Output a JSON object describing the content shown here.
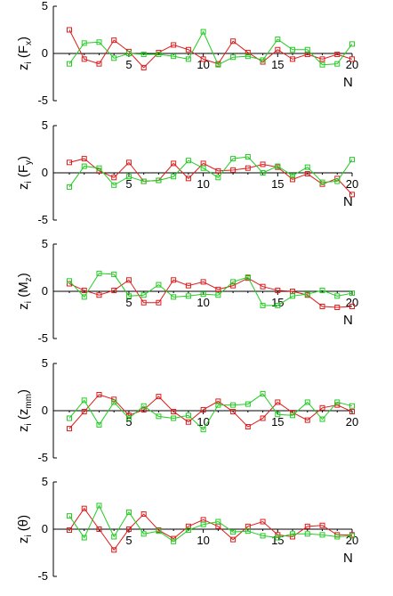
{
  "colors": {
    "series_red": "#dd1c1c",
    "series_green": "#22cc22",
    "axis": "#000000"
  },
  "chart_data": [
    {
      "type": "line",
      "ylabel_main": "z",
      "ylabel_sub1": "i",
      "ylabel_open": " (F",
      "ylabel_sub2": "x",
      "ylabel_close": ")",
      "xlabel": "N",
      "xlim": [
        1,
        20
      ],
      "ylim": [
        -5,
        5
      ],
      "yticks": [
        "5",
        "0",
        "-5"
      ],
      "xticks": [
        "5",
        "10",
        "15",
        "20"
      ],
      "x": [
        1,
        2,
        3,
        4,
        5,
        6,
        7,
        8,
        9,
        10,
        11,
        12,
        13,
        14,
        15,
        16,
        17,
        18,
        19,
        20
      ],
      "series": [
        {
          "color": "series_red",
          "values": [
            2.5,
            -0.6,
            -1.1,
            1.4,
            0.2,
            -1.5,
            0.1,
            0.9,
            0.4,
            -0.6,
            -1.1,
            1.3,
            0.1,
            -0.9,
            0.4,
            -0.6,
            -0.1,
            -0.6,
            -0.1,
            -0.6
          ]
        },
        {
          "color": "series_green",
          "values": [
            -1.1,
            1.1,
            1.2,
            -0.5,
            0.0,
            -0.1,
            -0.1,
            -0.3,
            -0.6,
            2.3,
            -1.2,
            -0.4,
            -0.3,
            -0.7,
            1.5,
            0.4,
            0.4,
            -1.2,
            -1.1,
            1.0
          ]
        }
      ]
    },
    {
      "type": "line",
      "ylabel_main": "z",
      "ylabel_sub1": "i",
      "ylabel_open": " (F",
      "ylabel_sub2": "y",
      "ylabel_close": ")",
      "xlabel": "N",
      "xlim": [
        1,
        20
      ],
      "ylim": [
        -5,
        5
      ],
      "yticks": [
        "5",
        "0",
        "-5"
      ],
      "xticks": [
        "5",
        "10",
        "15",
        "20"
      ],
      "x": [
        1,
        2,
        3,
        4,
        5,
        6,
        7,
        8,
        9,
        10,
        11,
        12,
        13,
        14,
        15,
        16,
        17,
        18,
        19,
        20
      ],
      "series": [
        {
          "color": "series_red",
          "values": [
            1.1,
            1.5,
            0.2,
            -0.5,
            1.1,
            -0.9,
            -0.8,
            1.0,
            -0.6,
            1.0,
            0.2,
            0.3,
            0.5,
            0.9,
            0.6,
            -0.7,
            -0.1,
            -1.2,
            -0.6,
            -2.3
          ]
        },
        {
          "color": "series_green",
          "values": [
            -1.5,
            0.7,
            0.5,
            -1.3,
            -0.4,
            -0.9,
            -0.8,
            -0.4,
            1.3,
            0.5,
            -0.5,
            1.5,
            1.7,
            0.0,
            0.7,
            -0.3,
            0.6,
            -1.0,
            -0.9,
            1.4
          ]
        }
      ]
    },
    {
      "type": "line",
      "ylabel_main": "z",
      "ylabel_sub1": "i",
      "ylabel_open": " (M",
      "ylabel_sub2": "z",
      "ylabel_close": ")",
      "xlabel": "N",
      "xlim": [
        1,
        20
      ],
      "ylim": [
        -5,
        5
      ],
      "yticks": [
        "5",
        "0",
        "-5"
      ],
      "xticks": [
        "5",
        "10",
        "15",
        "20"
      ],
      "x": [
        1,
        2,
        3,
        4,
        5,
        6,
        7,
        8,
        9,
        10,
        11,
        12,
        13,
        14,
        15,
        16,
        17,
        18,
        19,
        20
      ],
      "series": [
        {
          "color": "series_red",
          "values": [
            0.8,
            0.1,
            -0.4,
            0.1,
            1.2,
            -1.2,
            -1.2,
            1.2,
            0.6,
            1.0,
            0.2,
            0.6,
            1.4,
            0.5,
            0.1,
            0.0,
            -0.4,
            -1.6,
            -1.7,
            -1.6
          ]
        },
        {
          "color": "series_green",
          "values": [
            1.1,
            -0.6,
            1.9,
            1.8,
            -0.5,
            -0.4,
            0.7,
            -0.6,
            -0.5,
            -0.3,
            -0.4,
            1.0,
            1.5,
            -1.5,
            -1.5,
            -0.5,
            -0.3,
            0.1,
            -0.5,
            -0.2
          ]
        }
      ]
    },
    {
      "type": "line",
      "ylabel_main": "z",
      "ylabel_sub1": "i",
      "ylabel_open": " (z",
      "ylabel_sub2": "mm",
      "ylabel_close": ")",
      "xlabel": "",
      "xlim": [
        1,
        20
      ],
      "ylim": [
        -5,
        5
      ],
      "yticks": [
        "5",
        "0",
        "-5"
      ],
      "xticks": [
        "5",
        "10",
        "15",
        "20"
      ],
      "x": [
        1,
        2,
        3,
        4,
        5,
        6,
        7,
        8,
        9,
        10,
        11,
        12,
        13,
        14,
        15,
        16,
        17,
        18,
        19,
        20
      ],
      "series": [
        {
          "color": "series_red",
          "values": [
            -1.9,
            -0.1,
            1.7,
            1.2,
            -0.5,
            0.1,
            1.5,
            -0.1,
            -1.2,
            0.1,
            1.0,
            -0.1,
            -1.7,
            -0.8,
            0.9,
            -0.2,
            -1.0,
            0.3,
            0.6,
            -0.1
          ]
        },
        {
          "color": "series_green",
          "values": [
            -0.8,
            1.1,
            -1.5,
            0.9,
            -0.8,
            0.5,
            -0.6,
            -0.8,
            -0.5,
            -2.0,
            0.6,
            0.6,
            0.7,
            1.8,
            -0.4,
            -0.5,
            0.9,
            -0.9,
            0.9,
            0.5
          ]
        }
      ]
    },
    {
      "type": "line",
      "ylabel_main": "z",
      "ylabel_sub1": "i",
      "ylabel_open": " (",
      "ylabel_sub2": "",
      "ylabel_symbol": "θ",
      "ylabel_close": ")",
      "xlabel": "N",
      "xlim": [
        1,
        20
      ],
      "ylim": [
        -5,
        5
      ],
      "yticks": [
        "5",
        "0",
        "-5"
      ],
      "xticks": [
        "5",
        "10",
        "15",
        "20"
      ],
      "x": [
        1,
        2,
        3,
        4,
        5,
        6,
        7,
        8,
        9,
        10,
        11,
        12,
        13,
        14,
        15,
        16,
        17,
        18,
        19,
        20
      ],
      "series": [
        {
          "color": "series_red",
          "values": [
            -0.1,
            2.2,
            0.0,
            -2.2,
            0.0,
            1.6,
            -0.1,
            -1.0,
            0.3,
            1.0,
            0.3,
            -1.1,
            0.3,
            0.8,
            -0.6,
            -0.8,
            0.3,
            0.4,
            -0.6,
            -0.6
          ]
        },
        {
          "color": "series_green",
          "values": [
            1.4,
            -0.9,
            2.5,
            -0.8,
            1.8,
            -0.5,
            -0.2,
            -1.3,
            -0.1,
            0.5,
            0.8,
            -0.3,
            -0.2,
            -0.7,
            -0.9,
            -0.5,
            -0.5,
            -0.6,
            -0.8,
            -0.7
          ]
        }
      ]
    }
  ]
}
